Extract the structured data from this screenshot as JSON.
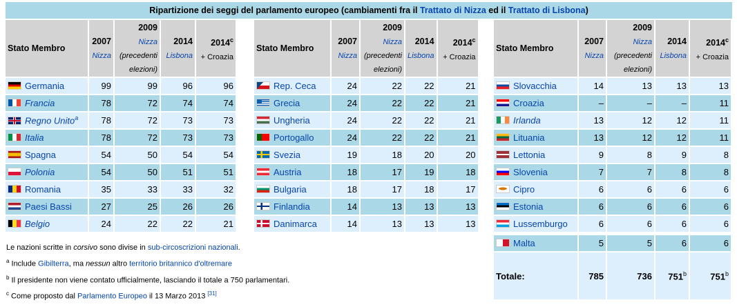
{
  "title": {
    "pre": "Ripartizione dei seggi del parlamento europeo (cambiamenti fra il ",
    "link1": "Trattato di Nizza",
    "mid": " ed il ",
    "link2": "Trattato di Lisbona",
    "post": ")"
  },
  "headers": {
    "state": "Stato Membro",
    "y2007": "2007",
    "y2007_sub": "Nizza",
    "y2009": "2009",
    "y2009_sub": "Nizza",
    "y2009_sub2": "(precedenti elezioni)",
    "y2014": "2014",
    "y2014_sub": "Lisbona",
    "y2014c": "2014",
    "y2014c_sup": "c",
    "y2014c_sub": "+ Croazia"
  },
  "tables": [
    [
      {
        "flag": "de",
        "name": "Germania",
        "italic": false,
        "v": [
          "99",
          "99",
          "96",
          "96"
        ]
      },
      {
        "flag": "fr",
        "name": "Francia",
        "italic": true,
        "v": [
          "78",
          "72",
          "74",
          "74"
        ]
      },
      {
        "flag": "gb",
        "name": "Regno Unito",
        "sup": "a",
        "italic": true,
        "v": [
          "78",
          "72",
          "73",
          "73"
        ]
      },
      {
        "flag": "it-f",
        "name": "Italia",
        "italic": true,
        "v": [
          "78",
          "72",
          "73",
          "73"
        ]
      },
      {
        "flag": "es",
        "name": "Spagna",
        "italic": false,
        "v": [
          "54",
          "50",
          "54",
          "54"
        ]
      },
      {
        "flag": "pl",
        "name": "Polonia",
        "italic": true,
        "v": [
          "54",
          "50",
          "51",
          "51"
        ]
      },
      {
        "flag": "ro",
        "name": "Romania",
        "italic": false,
        "v": [
          "35",
          "33",
          "33",
          "32"
        ]
      },
      {
        "flag": "nl",
        "name": "Paesi Bassi",
        "italic": false,
        "v": [
          "27",
          "25",
          "26",
          "26"
        ]
      },
      {
        "flag": "be",
        "name": "Belgio",
        "italic": true,
        "v": [
          "24",
          "22",
          "22",
          "21"
        ]
      }
    ],
    [
      {
        "flag": "cz",
        "name": "Rep. Ceca",
        "italic": false,
        "v": [
          "24",
          "22",
          "22",
          "21"
        ]
      },
      {
        "flag": "gr",
        "name": "Grecia",
        "italic": false,
        "v": [
          "24",
          "22",
          "22",
          "21"
        ]
      },
      {
        "flag": "hu",
        "name": "Ungheria",
        "italic": false,
        "v": [
          "24",
          "22",
          "22",
          "21"
        ]
      },
      {
        "flag": "pt",
        "name": "Portogallo",
        "italic": false,
        "v": [
          "24",
          "22",
          "22",
          "21"
        ]
      },
      {
        "flag": "se",
        "name": "Svezia",
        "italic": false,
        "v": [
          "19",
          "18",
          "20",
          "20"
        ]
      },
      {
        "flag": "at",
        "name": "Austria",
        "italic": false,
        "v": [
          "18",
          "17",
          "19",
          "18"
        ]
      },
      {
        "flag": "bg",
        "name": "Bulgaria",
        "italic": false,
        "v": [
          "18",
          "17",
          "18",
          "17"
        ]
      },
      {
        "flag": "fi",
        "name": "Finlandia",
        "italic": false,
        "v": [
          "14",
          "13",
          "13",
          "13"
        ]
      },
      {
        "flag": "dk",
        "name": "Danimarca",
        "italic": false,
        "v": [
          "14",
          "13",
          "13",
          "13"
        ]
      }
    ],
    [
      {
        "flag": "sk",
        "name": "Slovacchia",
        "italic": false,
        "v": [
          "14",
          "13",
          "13",
          "13"
        ]
      },
      {
        "flag": "hr",
        "name": "Croazia",
        "italic": false,
        "v": [
          "–",
          "–",
          "–",
          "11"
        ]
      },
      {
        "flag": "ie",
        "name": "Irlanda",
        "italic": true,
        "v": [
          "13",
          "12",
          "12",
          "11"
        ]
      },
      {
        "flag": "lt",
        "name": "Lituania",
        "italic": false,
        "v": [
          "13",
          "12",
          "12",
          "11"
        ]
      },
      {
        "flag": "lv",
        "name": "Lettonia",
        "italic": false,
        "v": [
          "9",
          "8",
          "9",
          "8"
        ]
      },
      {
        "flag": "si",
        "name": "Slovenia",
        "italic": false,
        "v": [
          "7",
          "7",
          "8",
          "8"
        ]
      },
      {
        "flag": "cy",
        "name": "Cipro",
        "italic": false,
        "v": [
          "6",
          "6",
          "6",
          "6"
        ]
      },
      {
        "flag": "ee",
        "name": "Estonia",
        "italic": false,
        "v": [
          "6",
          "6",
          "6",
          "6"
        ]
      },
      {
        "flag": "lu",
        "name": "Lussemburgo",
        "italic": false,
        "v": [
          "6",
          "6",
          "6",
          "6"
        ]
      },
      {
        "gap": true
      },
      {
        "flag": "mt",
        "name": "Malta",
        "italic": false,
        "v": [
          "5",
          "5",
          "6",
          "6"
        ]
      }
    ]
  ],
  "total": {
    "label": "Totale:",
    "v": [
      "785",
      "736",
      "751",
      "751"
    ],
    "sup": [
      "",
      "",
      "b",
      "b"
    ]
  },
  "notes": {
    "n1_pre": "Le nazioni scritte in ",
    "n1_it": "corsivo",
    "n1_mid": " sono divise in ",
    "n1_link": "sub-circoscrizioni nazionali",
    "n2_sup": "a",
    "n2_pre": " Include ",
    "n2_link1": "Gibilterra",
    "n2_mid": ", ma ",
    "n2_it": "nessun",
    "n2_mid2": " altro ",
    "n2_link2": "territorio britannico d'oltremare",
    "n3_sup": "b",
    "n3_text": " Il presidente non viene contato ufficialmente, lasciando il totale a 750 parlamentari.",
    "n4_sup": "c",
    "n4_pre": " Come proposto dal ",
    "n4_link": "Parlamento Europeo",
    "n4_mid": " il 13 Marzo 2013 ",
    "n4_ref": "[31]"
  }
}
